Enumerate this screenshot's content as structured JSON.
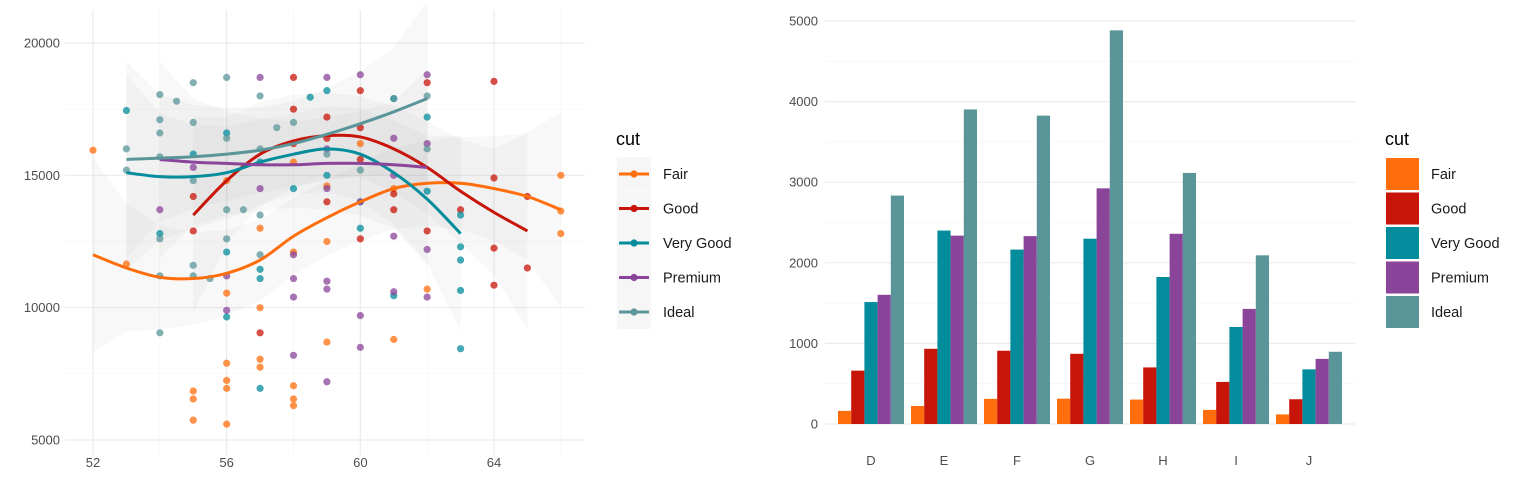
{
  "chart_data": [
    {
      "type": "scatter",
      "xlim": [
        51.5,
        66.5
      ],
      "ylim": [
        4900,
        20800
      ],
      "x_ticks": [
        "52",
        "56",
        "60",
        "64"
      ],
      "y_ticks": [
        "5000",
        "10000",
        "15000",
        "20000"
      ],
      "grid": true,
      "legend": {
        "title": "cut",
        "placement": "right"
      },
      "series": [
        {
          "name": "Fair",
          "color": "#FF6E0C",
          "points": [
            [
              52,
              15950
            ],
            [
              53,
              11650
            ],
            [
              55,
              6850
            ],
            [
              55,
              6550
            ],
            [
              55,
              5750
            ],
            [
              56,
              10550
            ],
            [
              56,
              7900
            ],
            [
              56,
              7250
            ],
            [
              56,
              6950
            ],
            [
              56,
              5600
            ],
            [
              57,
              10000
            ],
            [
              57,
              8050
            ],
            [
              57,
              7750
            ],
            [
              58,
              12100
            ],
            [
              58,
              7050
            ],
            [
              58,
              6550
            ],
            [
              58,
              6300
            ],
            [
              59,
              12500
            ],
            [
              59,
              8700
            ],
            [
              60,
              16200
            ],
            [
              61,
              8800
            ],
            [
              61,
              14500
            ],
            [
              62,
              10700
            ],
            [
              66,
              15000
            ],
            [
              66,
              13650
            ],
            [
              66,
              12800
            ],
            [
              58,
              15500
            ],
            [
              59,
              14600
            ],
            [
              57,
              13000
            ],
            [
              56,
              14800
            ]
          ],
          "smooth": [
            [
              52,
              12000
            ],
            [
              53,
              11500
            ],
            [
              54,
              11150
            ],
            [
              55,
              11100
            ],
            [
              56,
              11300
            ],
            [
              57,
              11800
            ],
            [
              58,
              12700
            ],
            [
              59,
              13400
            ],
            [
              60,
              14000
            ],
            [
              61,
              14500
            ],
            [
              62,
              14700
            ],
            [
              63,
              14700
            ],
            [
              64,
              14500
            ],
            [
              65,
              14200
            ],
            [
              66,
              13700
            ]
          ]
        },
        {
          "name": "Good",
          "color": "#C8150A",
          "points": [
            [
              55,
              12900
            ],
            [
              55,
              14200
            ],
            [
              57,
              9050
            ],
            [
              58,
              18700
            ],
            [
              58,
              17500
            ],
            [
              59,
              17200
            ],
            [
              59,
              16400
            ],
            [
              60,
              18200
            ],
            [
              60,
              16800
            ],
            [
              60,
              15600
            ],
            [
              60,
              12600
            ],
            [
              61,
              14300
            ],
            [
              61,
              13700
            ],
            [
              62,
              18500
            ],
            [
              62,
              12900
            ],
            [
              63,
              13700
            ],
            [
              64,
              18550
            ],
            [
              64,
              12250
            ],
            [
              64,
              10850
            ],
            [
              64,
              14900
            ],
            [
              65,
              11500
            ],
            [
              65,
              14200
            ],
            [
              59,
              14000
            ],
            [
              58,
              16200
            ]
          ],
          "smooth": [
            [
              55,
              13500
            ],
            [
              56,
              14800
            ],
            [
              57,
              15800
            ],
            [
              58,
              16300
            ],
            [
              59,
              16500
            ],
            [
              60,
              16450
            ],
            [
              61,
              16000
            ],
            [
              62,
              15300
            ],
            [
              63,
              14400
            ],
            [
              64,
              13600
            ],
            [
              65,
              12900
            ]
          ]
        },
        {
          "name": "Very Good",
          "color": "#038C9C",
          "points": [
            [
              53,
              17450
            ],
            [
              54,
              12800
            ],
            [
              56,
              12100
            ],
            [
              56,
              9650
            ],
            [
              56,
              16600
            ],
            [
              57,
              11450
            ],
            [
              57,
              6950
            ],
            [
              57,
              11100
            ],
            [
              58,
              14500
            ],
            [
              58.5,
              17950
            ],
            [
              59,
              18200
            ],
            [
              59,
              15000
            ],
            [
              60,
              14000
            ],
            [
              60,
              13000
            ],
            [
              61,
              17900
            ],
            [
              61,
              10450
            ],
            [
              62,
              17200
            ],
            [
              62,
              14400
            ],
            [
              63,
              13500
            ],
            [
              63,
              12300
            ],
            [
              63,
              11800
            ],
            [
              63,
              8450
            ],
            [
              63,
              10650
            ],
            [
              55,
              15800
            ],
            [
              57,
              15500
            ]
          ],
          "smooth": [
            [
              53,
              15100
            ],
            [
              54,
              14950
            ],
            [
              55,
              14950
            ],
            [
              56,
              15100
            ],
            [
              57,
              15500
            ],
            [
              58,
              15800
            ],
            [
              59,
              16000
            ],
            [
              60,
              15800
            ],
            [
              61,
              15100
            ],
            [
              62,
              14100
            ],
            [
              63,
              12800
            ]
          ]
        },
        {
          "name": "Premium",
          "color": "#8A4499",
          "points": [
            [
              54,
              13700
            ],
            [
              55,
              15300
            ],
            [
              56,
              11200
            ],
            [
              56,
              9900
            ],
            [
              57,
              18700
            ],
            [
              57,
              14500
            ],
            [
              58,
              12000
            ],
            [
              58,
              11100
            ],
            [
              58,
              10400
            ],
            [
              58,
              8200
            ],
            [
              59,
              18700
            ],
            [
              59,
              16000
            ],
            [
              59,
              14500
            ],
            [
              59,
              11000
            ],
            [
              59,
              10700
            ],
            [
              59,
              7200
            ],
            [
              60,
              18800
            ],
            [
              60,
              14000
            ],
            [
              60,
              9700
            ],
            [
              60,
              8500
            ],
            [
              61,
              16400
            ],
            [
              61,
              15000
            ],
            [
              61,
              12700
            ],
            [
              61,
              10600
            ],
            [
              62,
              18800
            ],
            [
              62,
              12200
            ],
            [
              62,
              10400
            ],
            [
              62,
              16200
            ]
          ],
          "smooth": [
            [
              54,
              15600
            ],
            [
              55,
              15500
            ],
            [
              56,
              15450
            ],
            [
              57,
              15400
            ],
            [
              58,
              15400
            ],
            [
              59,
              15450
            ],
            [
              60,
              15450
            ],
            [
              61,
              15400
            ],
            [
              62,
              15300
            ]
          ]
        },
        {
          "name": "Ideal",
          "color": "#5A9699",
          "points": [
            [
              53,
              16000
            ],
            [
              53,
              15200
            ],
            [
              54,
              18050
            ],
            [
              54,
              17100
            ],
            [
              54,
              16600
            ],
            [
              54,
              15700
            ],
            [
              54,
              12600
            ],
            [
              54,
              11200
            ],
            [
              54,
              9050
            ],
            [
              54.5,
              17800
            ],
            [
              55,
              18500
            ],
            [
              55,
              17000
            ],
            [
              55,
              14800
            ],
            [
              55,
              11600
            ],
            [
              55,
              11200
            ],
            [
              55.5,
              11100
            ],
            [
              56,
              18700
            ],
            [
              56,
              16400
            ],
            [
              56,
              13700
            ],
            [
              56,
              12600
            ],
            [
              56.5,
              13700
            ],
            [
              57,
              18000
            ],
            [
              57,
              16000
            ],
            [
              57,
              12000
            ],
            [
              57,
              13500
            ],
            [
              57.5,
              16800
            ],
            [
              58,
              17000
            ],
            [
              59,
              15800
            ],
            [
              60,
              15200
            ],
            [
              61,
              17900
            ],
            [
              62,
              18000
            ],
            [
              62,
              16000
            ]
          ],
          "smooth": [
            [
              53,
              15600
            ],
            [
              54,
              15650
            ],
            [
              55,
              15700
            ],
            [
              56,
              15800
            ],
            [
              57,
              15950
            ],
            [
              58,
              16200
            ],
            [
              59,
              16550
            ],
            [
              60,
              16950
            ],
            [
              61,
              17400
            ],
            [
              62,
              17900
            ]
          ]
        }
      ]
    },
    {
      "type": "bar",
      "categories": [
        "D",
        "E",
        "F",
        "G",
        "H",
        "I",
        "J"
      ],
      "ylim": [
        0,
        5100
      ],
      "y_ticks": [
        "0",
        "1000",
        "2000",
        "3000",
        "4000",
        "5000"
      ],
      "grid": true,
      "legend": {
        "title": "cut",
        "placement": "right"
      },
      "series": [
        {
          "name": "Fair",
          "color": "#FF6E0C",
          "values": [
            163,
            224,
            312,
            314,
            303,
            175,
            119
          ]
        },
        {
          "name": "Good",
          "color": "#C8150A",
          "values": [
            662,
            933,
            909,
            871,
            702,
            522,
            307
          ]
        },
        {
          "name": "Very Good",
          "color": "#038C9C",
          "values": [
            1513,
            2400,
            2164,
            2299,
            1824,
            1204,
            678
          ]
        },
        {
          "name": "Premium",
          "color": "#8A4499",
          "values": [
            1603,
            2337,
            2331,
            2924,
            2360,
            1428,
            808
          ]
        },
        {
          "name": "Ideal",
          "color": "#5A9699",
          "values": [
            2834,
            3903,
            3826,
            4884,
            3115,
            2093,
            896
          ]
        }
      ]
    }
  ]
}
